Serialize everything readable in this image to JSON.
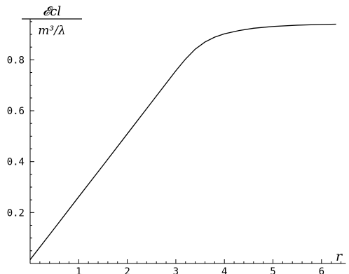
{
  "chart_data": {
    "type": "line",
    "title": "",
    "xlabel": "r",
    "ylabel_numerator": "𝓔cl",
    "ylabel_denominator": "m³/λ",
    "xlim": [
      0,
      6.5
    ],
    "ylim": [
      0,
      0.96
    ],
    "xticks": [
      1,
      2,
      3,
      4,
      5,
      6
    ],
    "yticks": [
      0.2,
      0.4,
      0.6,
      0.8
    ],
    "ytick_labels": [
      "0.2",
      "0.4",
      "0.6",
      "0.8"
    ],
    "grid": false,
    "series": [
      {
        "x": [
          0,
          0.5,
          1.0,
          1.5,
          2.0,
          2.5,
          3.0,
          3.2,
          3.4,
          3.6,
          3.8,
          4.0,
          4.3,
          4.6,
          5.0,
          5.5,
          6.0,
          6.3
        ],
        "y": [
          0.015,
          0.138,
          0.262,
          0.385,
          0.509,
          0.633,
          0.757,
          0.803,
          0.842,
          0.87,
          0.889,
          0.902,
          0.915,
          0.924,
          0.931,
          0.936,
          0.939,
          0.94
        ]
      }
    ],
    "colors": {
      "line": "#000000",
      "axis": "#000000"
    }
  }
}
